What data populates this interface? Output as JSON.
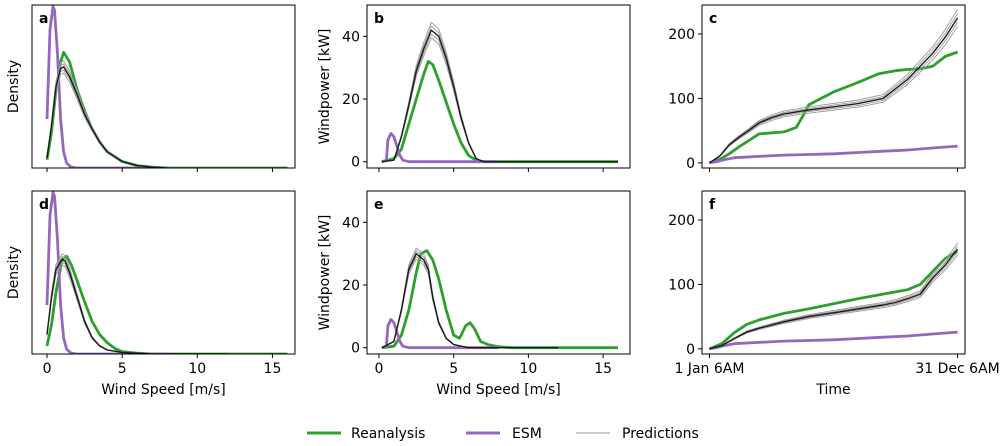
{
  "colors": {
    "reanalysis": "#2ca02c",
    "esm": "#9467bd",
    "predictions_light": "#9a9a9a",
    "predictions_dark": "#1a1a1a"
  },
  "legend": {
    "placement": "bottom-center",
    "items": [
      {
        "label": "Reanalysis",
        "color": "#2ca02c"
      },
      {
        "label": "ESM",
        "color": "#9467bd"
      },
      {
        "label": "Predictions",
        "color": "#9a9a9a"
      }
    ]
  },
  "chart_data": [
    {
      "panel": "a",
      "type": "line",
      "xlabel": "",
      "ylabel": "Density",
      "xlim": [
        -1,
        16.5
      ],
      "ylim": [
        0,
        1.0
      ],
      "xticks": [
        0,
        5,
        10,
        15
      ],
      "show_xtick_labels": false,
      "yticks": [],
      "show_ytick_labels": false,
      "series": [
        {
          "name": "Reanalysis",
          "x": [
            0,
            0.3,
            0.6,
            0.9,
            1.1,
            1.5,
            2,
            2.5,
            3,
            3.5,
            4,
            5,
            6,
            7,
            8,
            10,
            12,
            14,
            16
          ],
          "y": [
            0.05,
            0.22,
            0.48,
            0.65,
            0.71,
            0.65,
            0.48,
            0.35,
            0.24,
            0.16,
            0.1,
            0.04,
            0.015,
            0.005,
            0,
            0,
            0,
            0,
            0
          ]
        },
        {
          "name": "ESM",
          "x": [
            0,
            0.2,
            0.4,
            0.5,
            0.7,
            0.9,
            1.1,
            1.3,
            1.6,
            2,
            3,
            5,
            8
          ],
          "y": [
            0.3,
            0.85,
            0.99,
            0.97,
            0.7,
            0.3,
            0.1,
            0.03,
            0.005,
            0,
            0,
            0,
            0
          ]
        },
        {
          "name": "Predictions",
          "x": [
            0,
            0.3,
            0.6,
            0.9,
            1.1,
            1.5,
            2,
            2.5,
            3,
            3.5,
            4,
            5,
            6,
            7,
            8
          ],
          "y": [
            0.06,
            0.26,
            0.5,
            0.61,
            0.62,
            0.56,
            0.45,
            0.33,
            0.24,
            0.16,
            0.1,
            0.04,
            0.015,
            0.005,
            0
          ]
        }
      ]
    },
    {
      "panel": "b",
      "type": "line",
      "xlabel": "",
      "ylabel": "Windpower [kW]",
      "xlim": [
        -0.8,
        16.8
      ],
      "ylim": [
        -2,
        50
      ],
      "xticks": [
        0,
        5,
        10,
        15
      ],
      "show_xtick_labels": false,
      "yticks": [
        0,
        20,
        40
      ],
      "show_ytick_labels": true,
      "series": [
        {
          "name": "Reanalysis",
          "x": [
            0.2,
            1,
            1.5,
            2,
            2.5,
            3,
            3.3,
            3.6,
            4,
            4.5,
            5,
            5.5,
            6,
            6.5,
            7,
            8,
            10,
            12,
            14,
            16
          ],
          "y": [
            0,
            1,
            4,
            12,
            20,
            28,
            32,
            31,
            26,
            19,
            12,
            6,
            2,
            0.5,
            0,
            0,
            0,
            0,
            0,
            0
          ]
        },
        {
          "name": "ESM",
          "x": [
            0.2,
            0.5,
            0.6,
            0.8,
            1.0,
            1.2,
            1.4,
            1.6,
            2,
            3,
            5,
            8
          ],
          "y": [
            0,
            0.5,
            7,
            9,
            8,
            5,
            2,
            0.5,
            0,
            0,
            0,
            0
          ]
        },
        {
          "name": "Predictions",
          "x": [
            0.2,
            1,
            1.5,
            2,
            2.5,
            3,
            3.5,
            4,
            4.5,
            5,
            5.5,
            6,
            6.5,
            7,
            8,
            10,
            12,
            14,
            16
          ],
          "y": [
            0,
            0.5,
            8,
            18,
            29,
            36,
            42,
            40,
            33,
            24,
            14,
            6,
            1,
            0,
            0,
            0,
            0,
            0,
            0
          ]
        }
      ]
    },
    {
      "panel": "c",
      "type": "line",
      "xlabel": "",
      "ylabel": "",
      "xlim": [
        -0.03,
        1.03
      ],
      "ylim": [
        -8,
        245
      ],
      "xticks": [
        0,
        1
      ],
      "show_xtick_labels": false,
      "yticks": [
        0,
        100,
        200
      ],
      "show_ytick_labels": true,
      "series": [
        {
          "name": "Reanalysis",
          "x": [
            0,
            0.04,
            0.08,
            0.12,
            0.2,
            0.3,
            0.35,
            0.38,
            0.4,
            0.45,
            0.5,
            0.6,
            0.68,
            0.75,
            0.8,
            0.85,
            0.9,
            0.95,
            1.0
          ],
          "y": [
            0,
            5,
            14,
            25,
            45,
            48,
            55,
            75,
            90,
            100,
            110,
            125,
            138,
            143,
            145,
            146,
            150,
            165,
            172
          ]
        },
        {
          "name": "ESM",
          "x": [
            0,
            0.03,
            0.06,
            0.1,
            0.2,
            0.3,
            0.4,
            0.5,
            0.6,
            0.7,
            0.8,
            0.9,
            1.0
          ],
          "y": [
            0,
            2,
            5,
            8,
            10,
            12,
            13,
            14,
            16,
            18,
            20,
            23,
            26
          ]
        },
        {
          "name": "Predictions",
          "x": [
            0,
            0.04,
            0.08,
            0.12,
            0.15,
            0.2,
            0.25,
            0.3,
            0.4,
            0.5,
            0.6,
            0.7,
            0.75,
            0.8,
            0.85,
            0.9,
            0.95,
            1.0
          ],
          "y": [
            0,
            10,
            28,
            40,
            48,
            62,
            70,
            76,
            82,
            87,
            92,
            100,
            115,
            130,
            150,
            170,
            195,
            225
          ]
        }
      ]
    },
    {
      "panel": "d",
      "type": "line",
      "xlabel": "Wind Speed [m/s]",
      "ylabel": "Density",
      "xlim": [
        -1,
        16.5
      ],
      "ylim": [
        0,
        1.0
      ],
      "xticks": [
        0,
        5,
        10,
        15
      ],
      "show_xtick_labels": true,
      "yticks": [],
      "show_ytick_labels": false,
      "series": [
        {
          "name": "Reanalysis",
          "x": [
            0,
            0.3,
            0.6,
            1.0,
            1.3,
            1.6,
            2,
            2.5,
            3,
            3.5,
            4,
            4.5,
            5,
            6,
            7,
            8,
            10,
            12,
            14,
            16
          ],
          "y": [
            0.05,
            0.18,
            0.38,
            0.58,
            0.6,
            0.55,
            0.45,
            0.32,
            0.2,
            0.12,
            0.07,
            0.035,
            0.015,
            0.005,
            0,
            0,
            0,
            0,
            0,
            0
          ]
        },
        {
          "name": "ESM",
          "x": [
            0,
            0.2,
            0.4,
            0.5,
            0.7,
            0.9,
            1.1,
            1.3,
            1.6,
            2,
            3,
            5,
            8
          ],
          "y": [
            0.3,
            0.85,
            0.99,
            0.97,
            0.7,
            0.3,
            0.1,
            0.03,
            0.005,
            0,
            0,
            0,
            0
          ]
        },
        {
          "name": "Predictions",
          "x": [
            0,
            0.3,
            0.6,
            1.0,
            1.2,
            1.5,
            2,
            2.5,
            3,
            3.5,
            4,
            5,
            6,
            7,
            8,
            10,
            12
          ],
          "y": [
            0.12,
            0.35,
            0.52,
            0.58,
            0.57,
            0.5,
            0.35,
            0.2,
            0.1,
            0.05,
            0.025,
            0.01,
            0.005,
            0,
            0,
            0,
            0
          ]
        }
      ]
    },
    {
      "panel": "e",
      "type": "line",
      "xlabel": "Wind Speed [m/s]",
      "ylabel": "Windpower [kW]",
      "xlim": [
        -0.8,
        16.8
      ],
      "ylim": [
        -2,
        50
      ],
      "xticks": [
        0,
        5,
        10,
        15
      ],
      "show_xtick_labels": true,
      "yticks": [
        0,
        20,
        40
      ],
      "show_ytick_labels": true,
      "series": [
        {
          "name": "Reanalysis",
          "x": [
            0.2,
            1,
            1.5,
            2,
            2.5,
            2.8,
            3.2,
            3.6,
            4,
            4.5,
            5,
            5.4,
            5.8,
            6.1,
            6.4,
            6.8,
            7.3,
            8,
            9,
            10,
            12,
            14,
            16
          ],
          "y": [
            0,
            0.5,
            4,
            12,
            24,
            30,
            31,
            28,
            22,
            12,
            4,
            3,
            7,
            8,
            6,
            2,
            1,
            0.3,
            0,
            0,
            0,
            0,
            0
          ]
        },
        {
          "name": "ESM",
          "x": [
            0.2,
            0.5,
            0.6,
            0.8,
            1.0,
            1.2,
            1.4,
            1.6,
            2,
            3,
            5,
            8
          ],
          "y": [
            0,
            0.5,
            7,
            9,
            8,
            5,
            2,
            0.5,
            0,
            0,
            0,
            0
          ]
        },
        {
          "name": "Predictions",
          "x": [
            0.2,
            1,
            1.5,
            2,
            2.5,
            3,
            3.3,
            3.6,
            4,
            4.5,
            5,
            5.5,
            6,
            7,
            8,
            10,
            12
          ],
          "y": [
            0,
            2,
            12,
            25,
            30,
            28,
            25,
            16,
            8,
            3,
            1,
            0.5,
            0,
            0,
            0,
            0,
            0
          ]
        }
      ]
    },
    {
      "panel": "f",
      "type": "line",
      "xlabel": "Time",
      "ylabel": "",
      "xlim": [
        -0.03,
        1.03
      ],
      "ylim": [
        -8,
        245
      ],
      "xticks": [
        0,
        1
      ],
      "xtick_labels": [
        "1 Jan 6AM",
        "31 Dec 6AM"
      ],
      "show_xtick_labels": true,
      "yticks": [
        0,
        100,
        200
      ],
      "show_ytick_labels": true,
      "series": [
        {
          "name": "Reanalysis",
          "x": [
            0,
            0.05,
            0.1,
            0.15,
            0.2,
            0.3,
            0.4,
            0.5,
            0.6,
            0.7,
            0.8,
            0.85,
            0.9,
            0.95,
            1.0
          ],
          "y": [
            0,
            8,
            25,
            38,
            45,
            55,
            62,
            70,
            78,
            85,
            92,
            100,
            120,
            140,
            152
          ]
        },
        {
          "name": "ESM",
          "x": [
            0,
            0.03,
            0.06,
            0.1,
            0.2,
            0.3,
            0.4,
            0.5,
            0.6,
            0.7,
            0.8,
            0.9,
            1.0
          ],
          "y": [
            0,
            2,
            5,
            8,
            10,
            12,
            13,
            14,
            16,
            18,
            20,
            23,
            26
          ]
        },
        {
          "name": "Predictions",
          "x": [
            0,
            0.05,
            0.1,
            0.15,
            0.2,
            0.3,
            0.4,
            0.5,
            0.6,
            0.7,
            0.75,
            0.8,
            0.85,
            0.9,
            0.95,
            1.0
          ],
          "y": [
            0,
            5,
            16,
            26,
            32,
            42,
            50,
            56,
            62,
            68,
            72,
            78,
            85,
            110,
            130,
            155
          ]
        }
      ]
    }
  ]
}
